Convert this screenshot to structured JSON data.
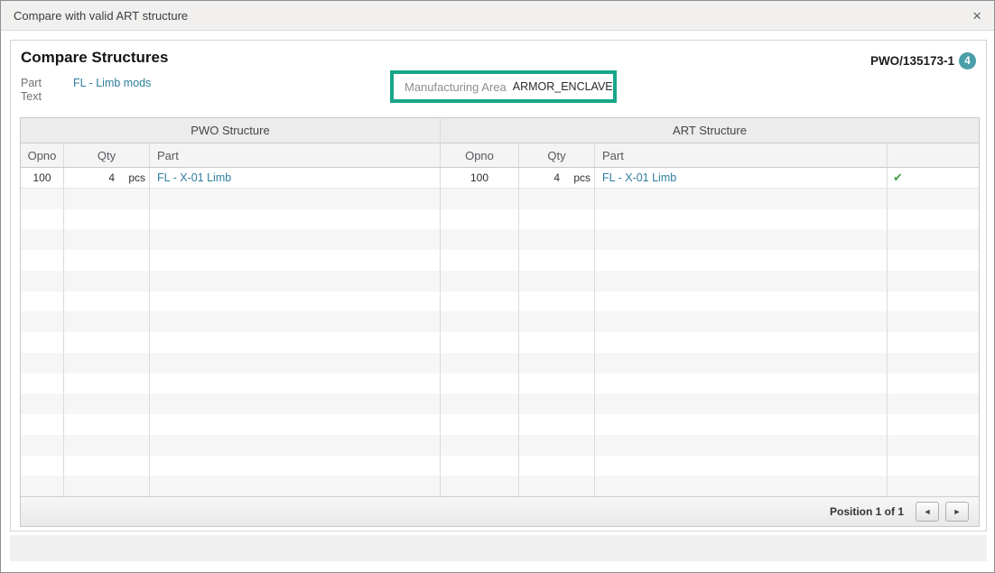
{
  "window": {
    "title": "Compare with valid ART structure"
  },
  "panel": {
    "heading": "Compare Structures",
    "reference": "PWO/135173-1",
    "badge_count": "4",
    "part_label": "Part",
    "text_label": "Text",
    "part_value": "FL - Limb mods",
    "manufacturing_area": {
      "label": "Manufacturing Area",
      "value": "ARMOR_ENCLAVE"
    }
  },
  "table": {
    "group_headers": [
      "PWO Structure",
      "ART Structure"
    ],
    "columns": [
      "Opno",
      "Qty",
      "Part"
    ],
    "rows": [
      {
        "pwo": {
          "opno": "100",
          "qty": "4",
          "unit": "pcs",
          "part": "FL - X-01 Limb"
        },
        "art": {
          "opno": "100",
          "qty": "4",
          "unit": "pcs",
          "part": "FL - X-01 Limb"
        },
        "match": true
      }
    ],
    "empty_row_count": 15
  },
  "footer": {
    "position_text": "Position 1 of 1"
  },
  "icons": {
    "close": "×",
    "check": "✔",
    "prev": "◄",
    "next": "►"
  },
  "colors": {
    "accent_badge_teal": "#4a9fa8",
    "link_teal": "#2e7e9e",
    "highlight_green": "#17a689",
    "check_green": "#43a047",
    "titlebar_gray": "#f1f0ef"
  }
}
